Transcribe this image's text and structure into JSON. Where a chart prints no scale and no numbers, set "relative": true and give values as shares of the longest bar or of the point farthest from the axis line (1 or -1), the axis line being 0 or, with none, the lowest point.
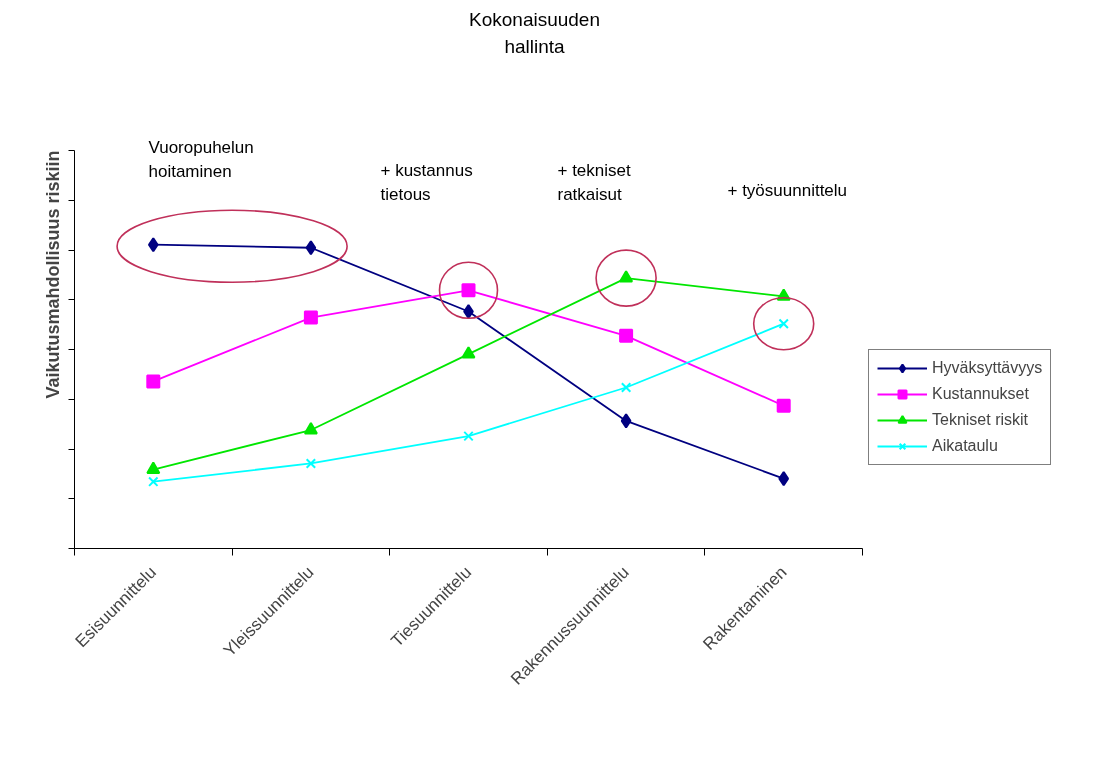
{
  "chart_data": {
    "type": "line",
    "title": "Kokonaisuuden hallinta",
    "ylabel": "Vaikutusmahdollisuus riskiin",
    "relative": true,
    "categories": [
      "Esisuunnittelu",
      "Yleissuunnittelu",
      "Tiesuunnittelu",
      "Rakennussuunnittelu",
      "Rakentaminen"
    ],
    "series": [
      {
        "name": "Hyväksyttävyys",
        "color": "#000080",
        "marker": "diamond",
        "values": [
          1.0,
          0.99,
          0.78,
          0.42,
          0.23
        ]
      },
      {
        "name": "Kustannukset",
        "color": "#ff00ff",
        "marker": "square",
        "values": [
          0.55,
          0.76,
          0.85,
          0.7,
          0.47
        ]
      },
      {
        "name": "Tekniset riskit",
        "color": "#00e600",
        "marker": "triangle",
        "values": [
          0.26,
          0.39,
          0.64,
          0.89,
          0.83
        ]
      },
      {
        "name": "Aikataulu",
        "color": "#00ffff",
        "marker": "cross",
        "values": [
          0.22,
          0.28,
          0.37,
          0.53,
          0.74
        ]
      }
    ],
    "annotations": [
      "Vuoropuhelun hoitaminen",
      "+ kustannus tietous",
      "+ tekniset ratkaisut",
      "+ työsuunnittelu"
    ],
    "legend": "right",
    "grid": false
  }
}
